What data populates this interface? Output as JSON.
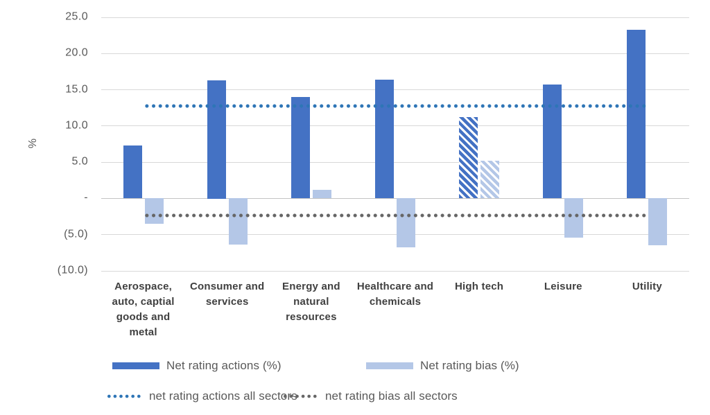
{
  "chart_data": {
    "type": "bar",
    "title": "",
    "xlabel": "",
    "ylabel": "%",
    "ylim": [
      -10,
      25
    ],
    "grid": true,
    "legend_position": "bottom",
    "yticks": [
      {
        "value": 25,
        "label": "25.0"
      },
      {
        "value": 20,
        "label": "20.0"
      },
      {
        "value": 15,
        "label": "15.0"
      },
      {
        "value": 10,
        "label": "10.0"
      },
      {
        "value": 5,
        "label": "5.0"
      },
      {
        "value": 0,
        "label": "-"
      },
      {
        "value": -5,
        "label": "(5.0)"
      },
      {
        "value": -10,
        "label": "(10.0)"
      }
    ],
    "categories": [
      "Aerospace, auto, captial goods and metal",
      "Consumer and services",
      "Energy and natural resources",
      "Healthcare and chemicals",
      "High tech",
      "Leisure",
      "Utility"
    ],
    "series": [
      {
        "name": "Net rating actions (%)",
        "color": "#4472C4",
        "values": [
          7.3,
          16.3,
          14.0,
          16.4,
          11.2,
          15.7,
          23.3
        ],
        "hatched_indexes": [
          4
        ]
      },
      {
        "name": "Net rating bias (%)",
        "color": "#B4C7E7",
        "values": [
          -3.5,
          -6.4,
          1.2,
          -6.8,
          5.2,
          -5.4,
          -6.5
        ],
        "hatched_indexes": [
          4
        ]
      }
    ],
    "reference_lines": [
      {
        "name": "net rating actions all sectors",
        "value": 12.8,
        "color": "#2E75B6",
        "style": "dotted"
      },
      {
        "name": "net rating bias all sectors",
        "value": -2.3,
        "color": "#666666",
        "style": "dotted"
      }
    ],
    "legend": {
      "items": [
        {
          "label": "Net rating actions (%)",
          "swatch": "solid",
          "color": "#4472C4"
        },
        {
          "label": "Net rating bias (%)",
          "swatch": "solid",
          "color": "#B4C7E7"
        },
        {
          "label": "net rating actions all sectors",
          "swatch": "dotted",
          "color": "#2E75B6"
        },
        {
          "label": "net rating bias all sectors",
          "swatch": "dotted",
          "color": "#666666"
        }
      ]
    }
  }
}
